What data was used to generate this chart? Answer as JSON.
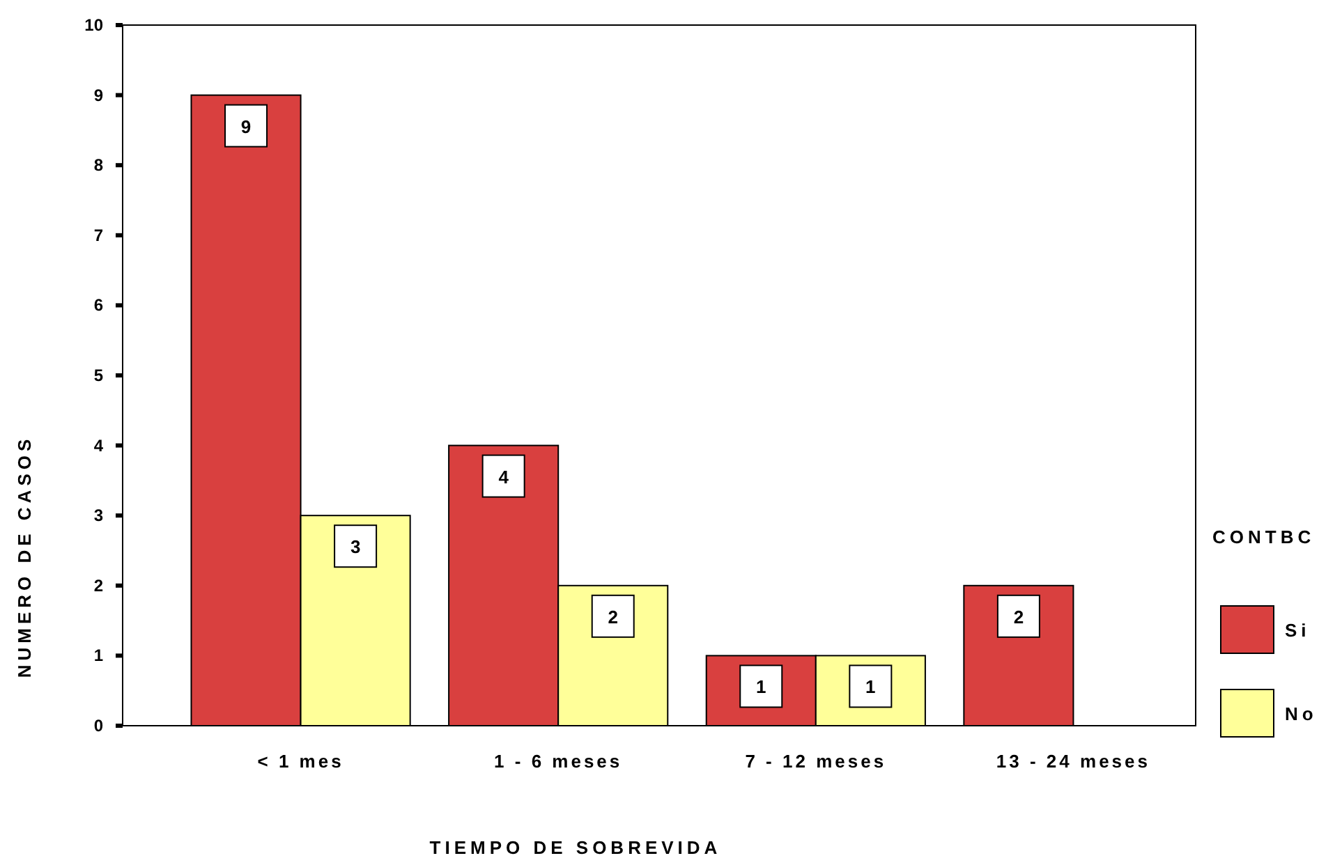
{
  "chart_data": {
    "type": "bar",
    "xlabel": "TIEMPO DE SOBREVIDA",
    "ylabel": "NUMERO DE CASOS",
    "legend_title": "CONTBC",
    "categories": [
      "< 1 mes",
      "1 - 6 meses",
      "7 - 12 meses",
      "13 - 24 meses"
    ],
    "series": [
      {
        "name": "Si",
        "color": "#d9403f",
        "values": [
          9,
          4,
          1,
          2
        ],
        "value_labels": [
          "9",
          "4",
          "1",
          "2"
        ]
      },
      {
        "name": "No",
        "color": "#ffff99",
        "values": [
          3,
          2,
          1,
          0
        ],
        "value_labels": [
          "3",
          "2",
          "1",
          null
        ]
      }
    ],
    "ylim": [
      0,
      10
    ],
    "yticks": [
      0,
      1,
      2,
      3,
      4,
      5,
      6,
      7,
      8,
      9,
      10
    ],
    "grid": false,
    "legend": "right"
  }
}
